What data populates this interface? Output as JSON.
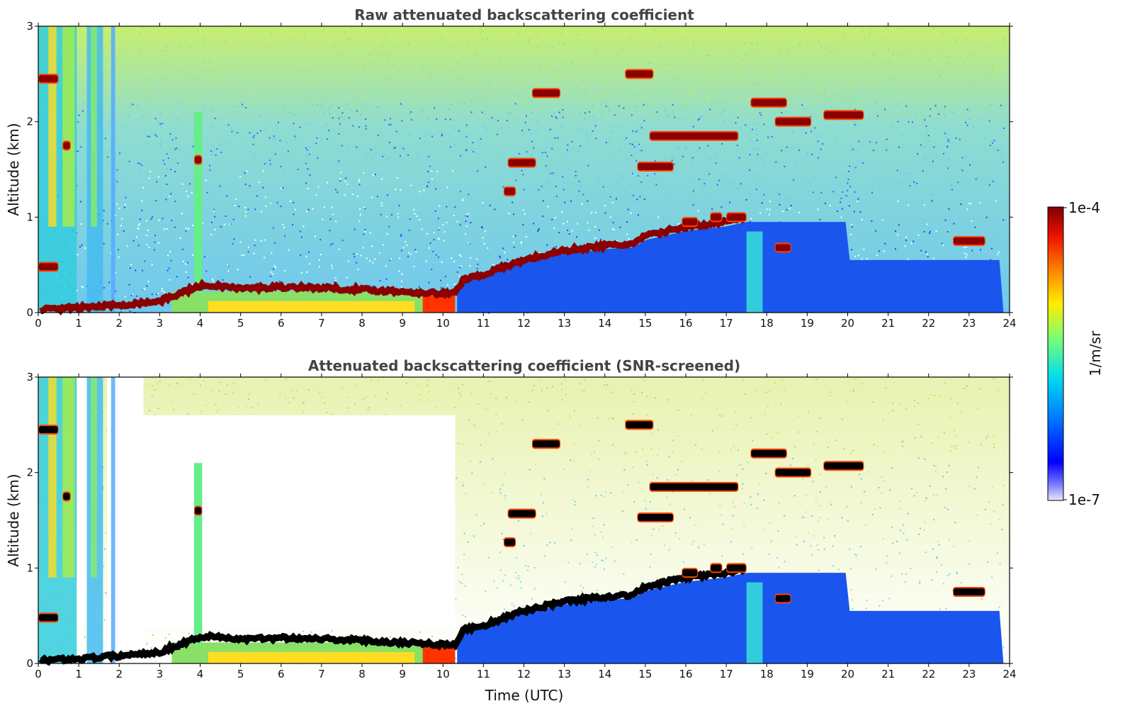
{
  "chart_data": [
    {
      "type": "heatmap",
      "title": "Raw attenuated backscattering coefficient",
      "xlabel": "",
      "ylabel": "Altitude (km)",
      "xlim": [
        0,
        24
      ],
      "ylim": [
        0,
        3
      ],
      "xticks": [
        "0",
        "1",
        "2",
        "3",
        "4",
        "5",
        "6",
        "7",
        "8",
        "9",
        "10",
        "11",
        "12",
        "13",
        "14",
        "15",
        "16",
        "17",
        "18",
        "19",
        "20",
        "21",
        "22",
        "23",
        "24"
      ],
      "yticks": [
        "0",
        "1",
        "2",
        "3"
      ],
      "screened": false,
      "boundary_layer_top_km": {
        "x": [
          0,
          1,
          2,
          3,
          3.5,
          4,
          4.5,
          5,
          6,
          7,
          8,
          9,
          10,
          10.3,
          10.5,
          11,
          12,
          13,
          14,
          14.7,
          15,
          16,
          17,
          17.5
        ],
        "y": [
          0.03,
          0.05,
          0.08,
          0.12,
          0.2,
          0.28,
          0.28,
          0.25,
          0.27,
          0.26,
          0.24,
          0.22,
          0.2,
          0.2,
          0.35,
          0.4,
          0.55,
          0.65,
          0.7,
          0.72,
          0.8,
          0.9,
          0.95,
          1.0
        ]
      },
      "cloud_layers_km": [
        {
          "x": [
            0.0,
            0.5
          ],
          "y": 2.45
        },
        {
          "x": [
            0.0,
            0.5
          ],
          "y": 0.48
        },
        {
          "x": [
            0.6,
            0.8
          ],
          "y": 1.75
        },
        {
          "x": [
            3.85,
            4.05
          ],
          "y": 1.6
        },
        {
          "x": [
            12.2,
            12.9
          ],
          "y": 2.3
        },
        {
          "x": [
            11.6,
            12.3
          ],
          "y": 1.57
        },
        {
          "x": [
            11.5,
            11.8
          ],
          "y": 1.27
        },
        {
          "x": [
            14.5,
            15.2
          ],
          "y": 2.5
        },
        {
          "x": [
            14.8,
            15.7
          ],
          "y": 1.53
        },
        {
          "x": [
            15.1,
            17.3
          ],
          "y": 1.85
        },
        {
          "x": [
            17.6,
            18.5
          ],
          "y": 2.2
        },
        {
          "x": [
            18.2,
            19.1
          ],
          "y": 2.0
        },
        {
          "x": [
            19.4,
            20.4
          ],
          "y": 2.07
        },
        {
          "x": [
            15.9,
            16.3
          ],
          "y": 0.95
        },
        {
          "x": [
            16.6,
            16.9
          ],
          "y": 1.0
        },
        {
          "x": [
            17.0,
            17.5
          ],
          "y": 1.0
        },
        {
          "x": [
            18.2,
            18.6
          ],
          "y": 0.68
        },
        {
          "x": [
            22.6,
            23.4
          ],
          "y": 0.75
        }
      ]
    },
    {
      "type": "heatmap",
      "title": "Attenuated backscattering coefficient (SNR-screened)",
      "xlabel": "Time (UTC)",
      "ylabel": "Altitude (km)",
      "xlim": [
        0,
        24
      ],
      "ylim": [
        0,
        3
      ],
      "xticks": [
        "0",
        "1",
        "2",
        "3",
        "4",
        "5",
        "6",
        "7",
        "8",
        "9",
        "10",
        "11",
        "12",
        "13",
        "14",
        "15",
        "16",
        "17",
        "18",
        "19",
        "20",
        "21",
        "22",
        "23",
        "24"
      ],
      "yticks": [
        "0",
        "1",
        "2",
        "3"
      ],
      "screened": true
    }
  ],
  "colorbar": {
    "label": "1/m/sr",
    "max_label": "1e-4",
    "min_label": "1e-7",
    "colormap": "jet",
    "colors": [
      "#e8e8f8",
      "#0000ff",
      "#00aaff",
      "#00ffcc",
      "#aaff44",
      "#ffee00",
      "#ff8800",
      "#ff2200",
      "#800000"
    ]
  }
}
